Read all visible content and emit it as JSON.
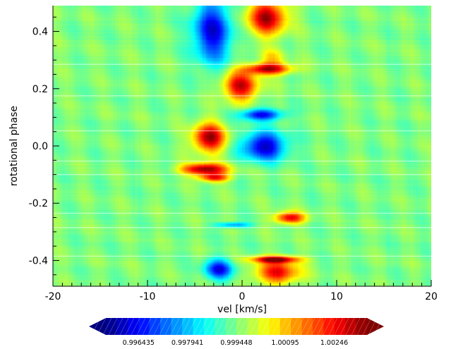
{
  "chart_data": {
    "type": "heatmap",
    "title": "",
    "xlabel": "vel [km/s]",
    "ylabel": "rotational phase",
    "xlim": [
      -20,
      20
    ],
    "ylim": [
      -0.49,
      0.49
    ],
    "x_ticks": [
      -20,
      -10,
      0,
      10,
      20
    ],
    "x_tick_labels": [
      "-20",
      "-10",
      "0",
      "10",
      "20"
    ],
    "y_ticks": [
      -0.4,
      -0.2,
      0.0,
      0.2,
      0.4
    ],
    "y_tick_labels": [
      "-0.4",
      "-0.2",
      "0.0",
      "0.2",
      "0.4"
    ],
    "colormap": "jet",
    "color_range": [
      0.99543,
      1.00347
    ],
    "background_value": 0.99945,
    "colorbar": {
      "orientation": "horizontal",
      "position": "bottom",
      "extend": "both",
      "tick_values": [
        0.996435,
        0.997941,
        0.999448,
        1.00095,
        1.00246
      ],
      "tick_labels": [
        "0.996435",
        "0.997941",
        "0.999448",
        "1.00095",
        "1.00246"
      ]
    },
    "observation_phases": [
      0.285,
      0.175,
      0.053,
      -0.053,
      -0.1,
      -0.235,
      -0.285,
      -0.385
    ],
    "features": [
      {
        "vel": -3.2,
        "phase": 0.4,
        "value": 0.9962,
        "w": 2.0,
        "h": 0.11
      },
      {
        "vel": 2.6,
        "phase": 0.45,
        "value": 1.0031,
        "w": 2.0,
        "h": 0.06
      },
      {
        "vel": 3.2,
        "phase": 0.31,
        "value": 1.0006,
        "w": 1.2,
        "h": 0.03
      },
      {
        "vel": 2.7,
        "phase": 0.27,
        "value": 1.0031,
        "w": 2.4,
        "h": 0.02
      },
      {
        "vel": -0.2,
        "phase": 0.21,
        "value": 1.0029,
        "w": 1.8,
        "h": 0.05
      },
      {
        "vel": 2.0,
        "phase": 0.11,
        "value": 0.9963,
        "w": 2.3,
        "h": 0.02
      },
      {
        "vel": -3.5,
        "phase": 0.03,
        "value": 1.0032,
        "w": 1.7,
        "h": 0.05
      },
      {
        "vel": 2.3,
        "phase": 0.0,
        "value": 0.996,
        "w": 2.3,
        "h": 0.05
      },
      {
        "vel": -4.0,
        "phase": -0.08,
        "value": 1.0034,
        "w": 2.4,
        "h": 0.02
      },
      {
        "vel": -3.0,
        "phase": -0.11,
        "value": 1.0024,
        "w": 1.6,
        "h": 0.015
      },
      {
        "vel": 5.0,
        "phase": -0.25,
        "value": 1.0027,
        "w": 1.6,
        "h": 0.02
      },
      {
        "vel": -1.0,
        "phase": -0.275,
        "value": 0.9975,
        "w": 1.8,
        "h": 0.01
      },
      {
        "vel": 3.5,
        "phase": -0.395,
        "value": 1.0031,
        "w": 2.5,
        "h": 0.012
      },
      {
        "vel": 3.7,
        "phase": -0.44,
        "value": 1.0025,
        "w": 2.3,
        "h": 0.04
      },
      {
        "vel": -2.5,
        "phase": -0.43,
        "value": 0.9964,
        "w": 1.5,
        "h": 0.035
      }
    ]
  }
}
